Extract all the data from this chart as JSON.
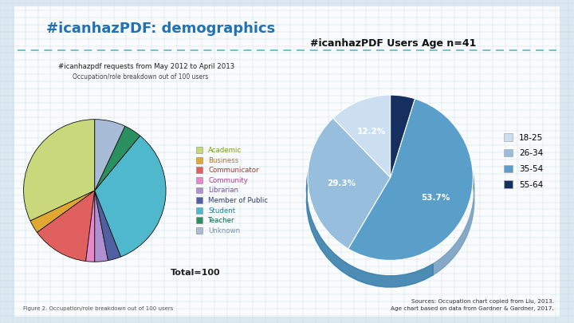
{
  "title": "#icanhazPDF: demographics",
  "title_color": "#2271b3",
  "background_color": "#dce8f0",
  "panel_color": "#ffffff",
  "grid_color": "#b8cfe0",
  "left_subtitle1": "#icanhazpdf requests from May 2012 to April 2013",
  "left_subtitle2": "Occupation/role breakdown out of 100 users",
  "left_total": "Total=100",
  "left_figure_caption": "Figure 2. Occupation/role breakdown out of 100 users",
  "occ_labels": [
    "Academic",
    "Business",
    "Communicator",
    "Community",
    "Librarian",
    "Member of Public",
    "Student",
    "Teacher",
    "Unknown"
  ],
  "occ_values": [
    32,
    3,
    13,
    2,
    3,
    3,
    33,
    4,
    7
  ],
  "occ_colors": [
    "#c8d87a",
    "#e0a830",
    "#e06060",
    "#e888c8",
    "#b090d0",
    "#5060a0",
    "#50b8cc",
    "#2a9060",
    "#a8bcd8"
  ],
  "occ_legend_colors": [
    "#7a9a20",
    "#b07820",
    "#b03030",
    "#b04090",
    "#7050a0",
    "#303878",
    "#2080a0",
    "#106040",
    "#7090b0"
  ],
  "age_title": "#icanhazPDF Users Age n=41",
  "age_labels": [
    "18-25",
    "26-34",
    "35-54",
    "55-64"
  ],
  "age_values": [
    12.2,
    29.3,
    53.7,
    4.8
  ],
  "age_colors": [
    "#ccdff0",
    "#98bede",
    "#5a9eca",
    "#152f5e"
  ],
  "age_shadow_colors": [
    "#aabfd0",
    "#78a0c0",
    "#3a80ac",
    "#0a1a40"
  ],
  "source_text": "Sources: Occupation chart copied from Liu, 2013.\nAge chart based on data from Gardner & Gardner, 2017.",
  "dashed_line_color": "#5ab8c8"
}
